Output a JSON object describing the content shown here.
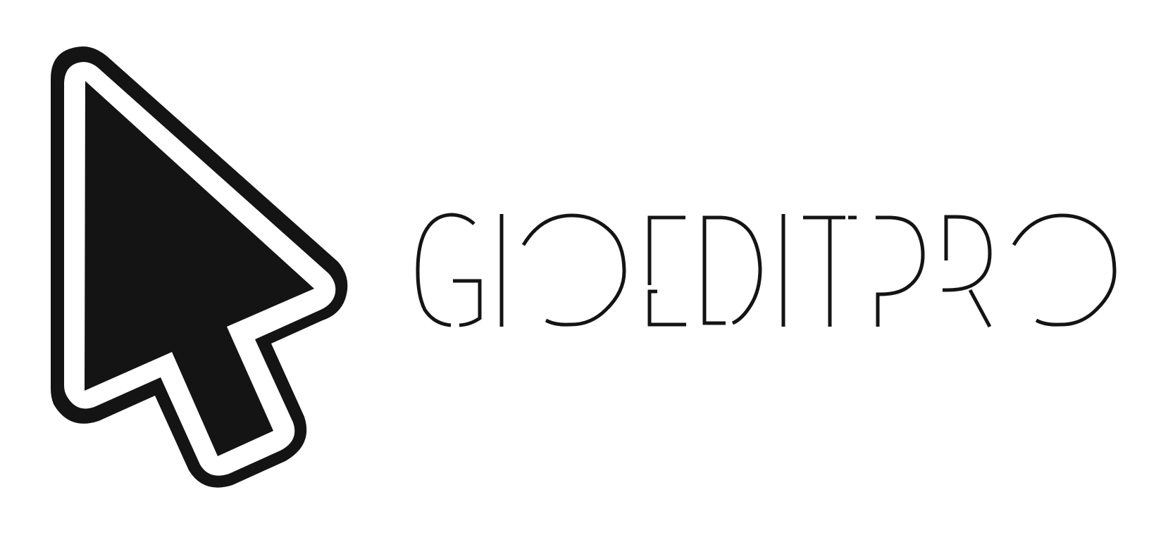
{
  "logo": {
    "wordmark": "GIOEDITPRO",
    "icon": "cursor-arrow-icon",
    "colors": {
      "ink": "#141414",
      "background": "#ffffff"
    }
  }
}
